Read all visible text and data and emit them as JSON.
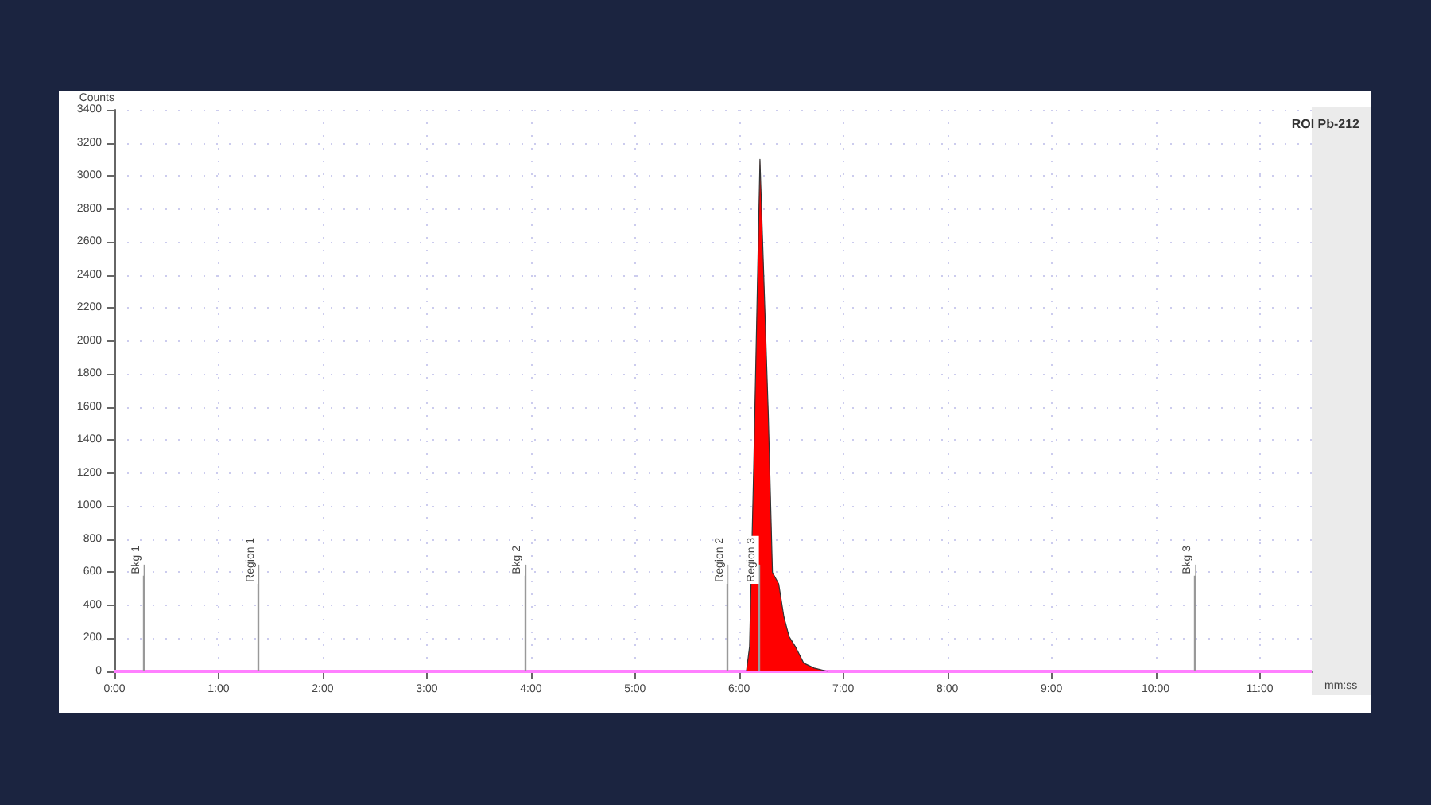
{
  "chart_data": {
    "type": "area",
    "title": "ROI Pb-212",
    "xlabel": "mm:ss",
    "ylabel": "Counts",
    "series": [
      {
        "type": "line",
        "color": "#ff80ff",
        "x": [
          0,
          11.5
        ],
        "values": [
          0,
          0
        ]
      },
      {
        "color": "#ff0000",
        "x": [
          6.07,
          6.1,
          6.14,
          6.2,
          6.28,
          6.32,
          6.38,
          6.43,
          6.48,
          6.54,
          6.62,
          6.72,
          6.85
        ],
        "values": [
          0,
          150,
          1240,
          3100,
          1560,
          600,
          530,
          330,
          210,
          150,
          50,
          20,
          0
        ]
      }
    ],
    "xlim": [
      0,
      11.5
    ],
    "xticks": [
      {
        "value": 0,
        "label": "0:00"
      },
      {
        "value": 1,
        "label": "1:00"
      },
      {
        "value": 2,
        "label": "2:00"
      },
      {
        "value": 3,
        "label": "3:00"
      },
      {
        "value": 4,
        "label": "4:00"
      },
      {
        "value": 5,
        "label": "5:00"
      },
      {
        "value": 6,
        "label": "6:00"
      },
      {
        "value": 7,
        "label": "7:00"
      },
      {
        "value": 8,
        "label": "8:00"
      },
      {
        "value": 9,
        "label": "9:00"
      },
      {
        "value": 10,
        "label": "10:00"
      },
      {
        "value": 11,
        "label": "11:00"
      }
    ],
    "ylim": [
      0,
      3400
    ],
    "yticks": [
      0,
      200,
      400,
      600,
      800,
      1000,
      1200,
      1400,
      1600,
      1800,
      2000,
      2200,
      2400,
      2600,
      2800,
      3000,
      3200,
      3400
    ],
    "ref_lines": [
      {
        "axis": "x",
        "value": 0.28,
        "label": "Bkg 1",
        "color": "#999999"
      },
      {
        "axis": "x",
        "value": 1.38,
        "label": "Region 1",
        "color": "#999999"
      },
      {
        "axis": "x",
        "value": 3.94,
        "label": "Bkg 2",
        "color": "#999999"
      },
      {
        "axis": "x",
        "value": 5.89,
        "label": "Region 2",
        "color": "#999999"
      },
      {
        "axis": "x",
        "value": 6.19,
        "label": "Region 3",
        "color": "#999999"
      },
      {
        "axis": "x",
        "value": 10.38,
        "label": "Bkg 3",
        "color": "#999999"
      }
    ],
    "grid": true,
    "marker": "none"
  }
}
